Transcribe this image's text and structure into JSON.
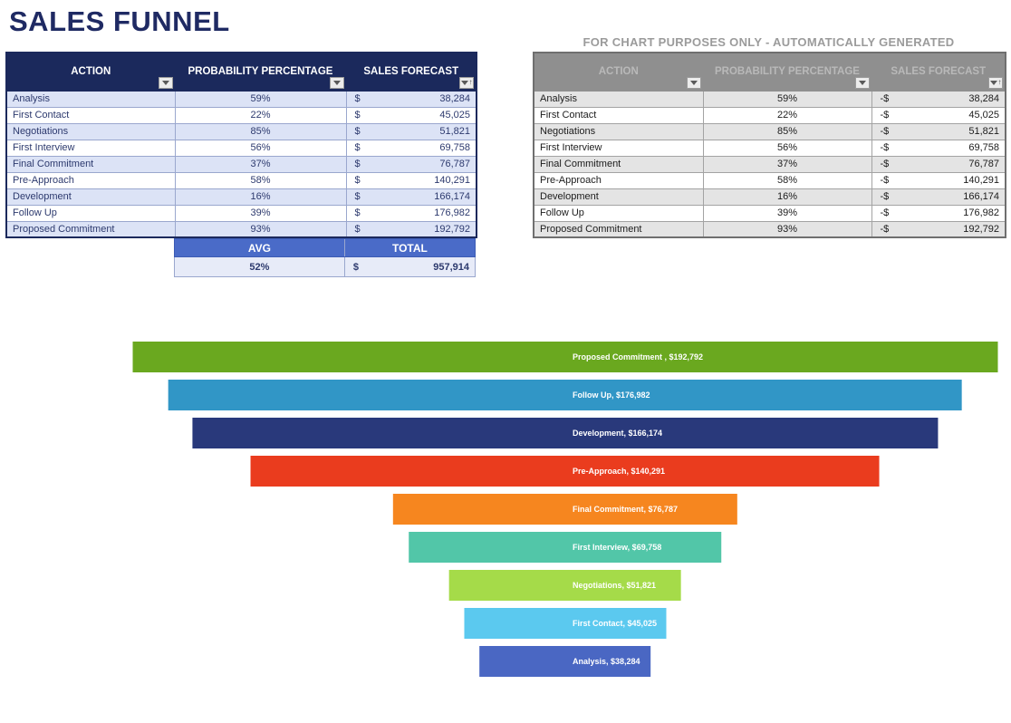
{
  "title": "SALES FUNNEL",
  "left_table": {
    "columns": {
      "action": "ACTION",
      "probability": "PROBABILITY PERCENTAGE",
      "forecast": "SALES FORECAST"
    },
    "rows": [
      {
        "action": "Analysis",
        "pct": "59%",
        "cur": "$",
        "val": "38,284"
      },
      {
        "action": "First Contact",
        "pct": "22%",
        "cur": "$",
        "val": "45,025"
      },
      {
        "action": "Negotiations",
        "pct": "85%",
        "cur": "$",
        "val": "51,821"
      },
      {
        "action": "First Interview",
        "pct": "56%",
        "cur": "$",
        "val": "69,758"
      },
      {
        "action": "Final Commitment",
        "pct": "37%",
        "cur": "$",
        "val": "76,787"
      },
      {
        "action": "Pre-Approach",
        "pct": "58%",
        "cur": "$",
        "val": "140,291"
      },
      {
        "action": "Development",
        "pct": "16%",
        "cur": "$",
        "val": "166,174"
      },
      {
        "action": "Follow Up",
        "pct": "39%",
        "cur": "$",
        "val": "176,982"
      },
      {
        "action": "Proposed Commitment",
        "pct": "93%",
        "cur": "$",
        "val": "192,792"
      }
    ],
    "summary": {
      "avg_label": "AVG",
      "total_label": "TOTAL",
      "avg": "52%",
      "cur": "$",
      "total": "957,914"
    }
  },
  "right_table": {
    "banner": "FOR CHART PURPOSES ONLY - AUTOMATICALLY GENERATED",
    "columns": {
      "action": "ACTION",
      "probability": "PROBABILITY PERCENTAGE",
      "forecast": "SALES FORECAST"
    },
    "rows": [
      {
        "action": "Analysis",
        "pct": "59%",
        "cur": "-$",
        "val": "38,284"
      },
      {
        "action": "First Contact",
        "pct": "22%",
        "cur": "-$",
        "val": "45,025"
      },
      {
        "action": "Negotiations",
        "pct": "85%",
        "cur": "-$",
        "val": "51,821"
      },
      {
        "action": "First Interview",
        "pct": "56%",
        "cur": "-$",
        "val": "69,758"
      },
      {
        "action": "Final Commitment",
        "pct": "37%",
        "cur": "-$",
        "val": "76,787"
      },
      {
        "action": "Pre-Approach",
        "pct": "58%",
        "cur": "-$",
        "val": "140,291"
      },
      {
        "action": "Development",
        "pct": "16%",
        "cur": "-$",
        "val": "166,174"
      },
      {
        "action": "Follow Up",
        "pct": "39%",
        "cur": "-$",
        "val": "176,982"
      },
      {
        "action": "Proposed Commitment",
        "pct": "93%",
        "cur": "-$",
        "val": "192,792"
      }
    ]
  },
  "chart_data": {
    "type": "bar",
    "variant": "horizontal-centered-funnel",
    "title": "",
    "categories": [
      "Proposed Commitment",
      "Follow Up",
      "Development",
      "Pre-Approach",
      "Final Commitment",
      "First Interview",
      "Negotiations",
      "First Contact",
      "Analysis"
    ],
    "values": [
      192792,
      176982,
      166174,
      140291,
      76787,
      69758,
      51821,
      45025,
      38284
    ],
    "labels": [
      "Proposed Commitment , $192,792",
      "Follow Up, $176,982",
      "Development, $166,174",
      "Pre-Approach, $140,291",
      "Final Commitment, $76,787",
      "First Interview, $69,758",
      "Negotiations, $51,821",
      "First Contact, $45,025",
      "Analysis, $38,284"
    ],
    "colors": [
      "#6AA81F",
      "#3196C6",
      "#29397B",
      "#EA3C1E",
      "#F6861F",
      "#52C6A8",
      "#A5DB49",
      "#5BC9EF",
      "#4A67C3"
    ],
    "xlim": [
      0,
      192792
    ],
    "grid": false,
    "legend": false
  },
  "colors": {
    "title": "#1F2A63",
    "left_header_bg": "#1B295C",
    "left_row_shaded": "#DCE3F6",
    "left_text": "#2D3A6E",
    "summary_header_bg": "#4A6BC8",
    "right_banner": "#9B9B9B",
    "right_header_bg": "#8F8F8F",
    "right_row_shaded": "#E4E4E4"
  }
}
